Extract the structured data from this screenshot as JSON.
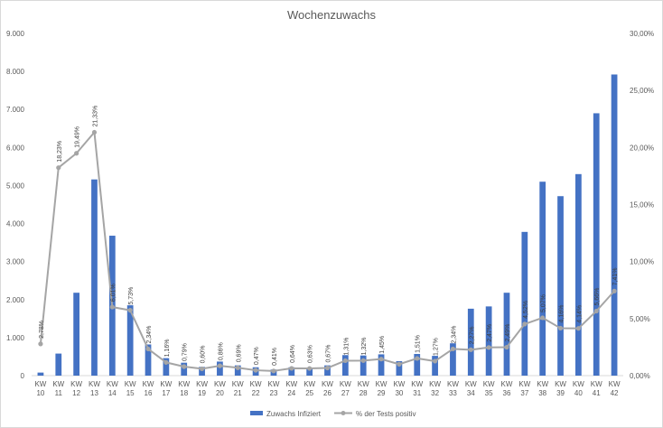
{
  "chart_data": {
    "type": "bar",
    "title": "Wochenzuwachs",
    "categories": [
      "KW 10",
      "KW 11",
      "KW 12",
      "KW 13",
      "KW 14",
      "KW 15",
      "KW 16",
      "KW 17",
      "KW 18",
      "KW 19",
      "KW 20",
      "KW 21",
      "KW 22",
      "KW 23",
      "KW 24",
      "KW 25",
      "KW 26",
      "KW 27",
      "KW 28",
      "KW 29",
      "KW 30",
      "KW 31",
      "KW 32",
      "KW 33",
      "KW 34",
      "KW 35",
      "KW 36",
      "KW 37",
      "KW 38",
      "KW 39",
      "KW 40",
      "KW 41",
      "KW 42"
    ],
    "y_left": {
      "min": 0,
      "max": 9000,
      "step": 1000,
      "tick_labels": [
        "0",
        "1.000",
        "2.000",
        "3.000",
        "4.000",
        "5.000",
        "6.000",
        "7.000",
        "8.000",
        "9.000"
      ]
    },
    "y_right": {
      "min": 0,
      "max": 30,
      "step": 5,
      "tick_labels": [
        "0,00%",
        "5,00%",
        "10,00%",
        "15,00%",
        "20,00%",
        "25,00%",
        "30,00%"
      ]
    },
    "series": [
      {
        "name": "Zuwachs Infiziert",
        "type": "bar",
        "axis": "left",
        "color": "#4472c4",
        "values": [
          80,
          580,
          2180,
          5160,
          3680,
          1850,
          820,
          460,
          340,
          230,
          370,
          270,
          220,
          160,
          220,
          210,
          270,
          540,
          530,
          560,
          380,
          570,
          520,
          850,
          1760,
          1820,
          2180,
          3780,
          5100,
          4720,
          5300,
          6900,
          7920
        ]
      },
      {
        "name": "% der Tests positiv",
        "type": "line",
        "axis": "right",
        "color": "#a5a5a5",
        "values": [
          2.78,
          18.23,
          19.49,
          21.33,
          6.01,
          5.73,
          2.34,
          1.16,
          0.79,
          0.6,
          0.86,
          0.69,
          0.47,
          0.41,
          0.64,
          0.63,
          0.67,
          1.31,
          1.32,
          1.45,
          1.0,
          1.51,
          1.27,
          2.34,
          2.27,
          2.47,
          2.49,
          4.52,
          5.07,
          4.16,
          4.14,
          5.66,
          7.41
        ],
        "labels": [
          "2,78%",
          "18,23%",
          "19,49%",
          "21,33%",
          "6,01%",
          "5,73%",
          "2,34%",
          "1,16%",
          "0,79%",
          "0,60%",
          "0,86%",
          "0,69%",
          "0,47%",
          "0,41%",
          "0,64%",
          "0,63%",
          "0,67%",
          "1,31%",
          "1,32%",
          "1,45%",
          "",
          "1,51%",
          "1,27%",
          "2,34%",
          "2,27%",
          "2,47%",
          "2,49%",
          "4,52%",
          "5,07%",
          "4,16%",
          "4,14%",
          "5,66%",
          "7,41%"
        ]
      }
    ],
    "legend": {
      "position": "bottom"
    },
    "grid": false
  }
}
